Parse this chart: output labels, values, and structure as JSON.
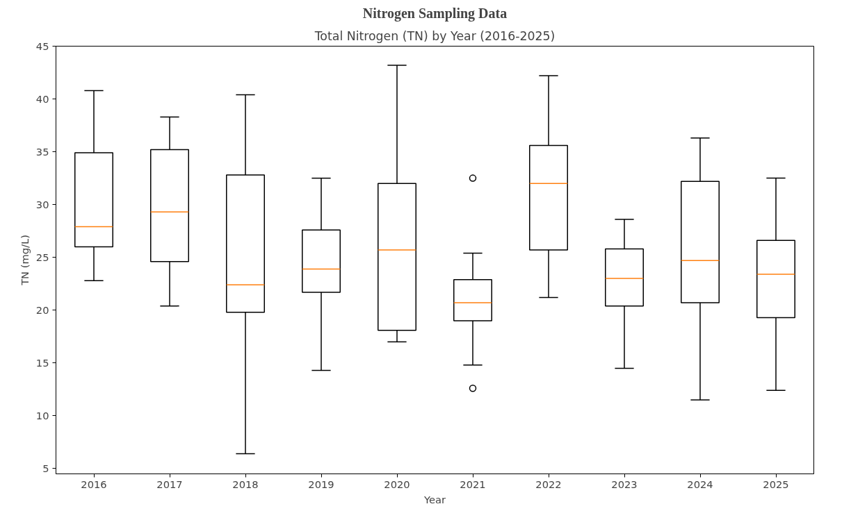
{
  "chart_data": {
    "type": "box",
    "title": "Nitrogen Sampling Data",
    "subtitle": "Total Nitrogen (TN) by Year (2016-2025)",
    "xlabel": "Year",
    "ylabel": "TN (mg/L)",
    "categories": [
      "2016",
      "2017",
      "2018",
      "2019",
      "2020",
      "2021",
      "2022",
      "2023",
      "2024",
      "2025"
    ],
    "series": [
      {
        "boxes": [
          {
            "low": 22.8,
            "q1": 26.0,
            "median": 27.9,
            "q3": 34.9,
            "high": 40.8
          },
          {
            "low": 20.4,
            "q1": 24.6,
            "median": 29.3,
            "q3": 35.2,
            "high": 38.3
          },
          {
            "low": 6.4,
            "q1": 19.8,
            "median": 22.4,
            "q3": 32.8,
            "high": 40.4
          },
          {
            "low": 14.3,
            "q1": 21.7,
            "median": 23.9,
            "q3": 27.6,
            "high": 32.5
          },
          {
            "low": 17.0,
            "q1": 18.1,
            "median": 25.7,
            "q3": 32.0,
            "high": 43.2
          },
          {
            "low": 14.8,
            "q1": 19.0,
            "median": 20.7,
            "q3": 22.9,
            "high": 25.4,
            "outliers": [
              32.5,
              12.6
            ]
          },
          {
            "low": 21.2,
            "q1": 25.7,
            "median": 32.0,
            "q3": 35.6,
            "high": 42.2
          },
          {
            "low": 14.5,
            "q1": 20.4,
            "median": 23.0,
            "q3": 25.8,
            "high": 28.6
          },
          {
            "low": 11.5,
            "q1": 20.7,
            "median": 24.7,
            "q3": 32.2,
            "high": 36.3
          },
          {
            "low": 12.4,
            "q1": 19.3,
            "median": 23.4,
            "q3": 26.6,
            "high": 32.5
          }
        ]
      }
    ],
    "ylim": [
      4.5,
      45
    ],
    "yticks": [
      5,
      10,
      15,
      20,
      25,
      30,
      35,
      40,
      45
    ],
    "grid": false
  }
}
